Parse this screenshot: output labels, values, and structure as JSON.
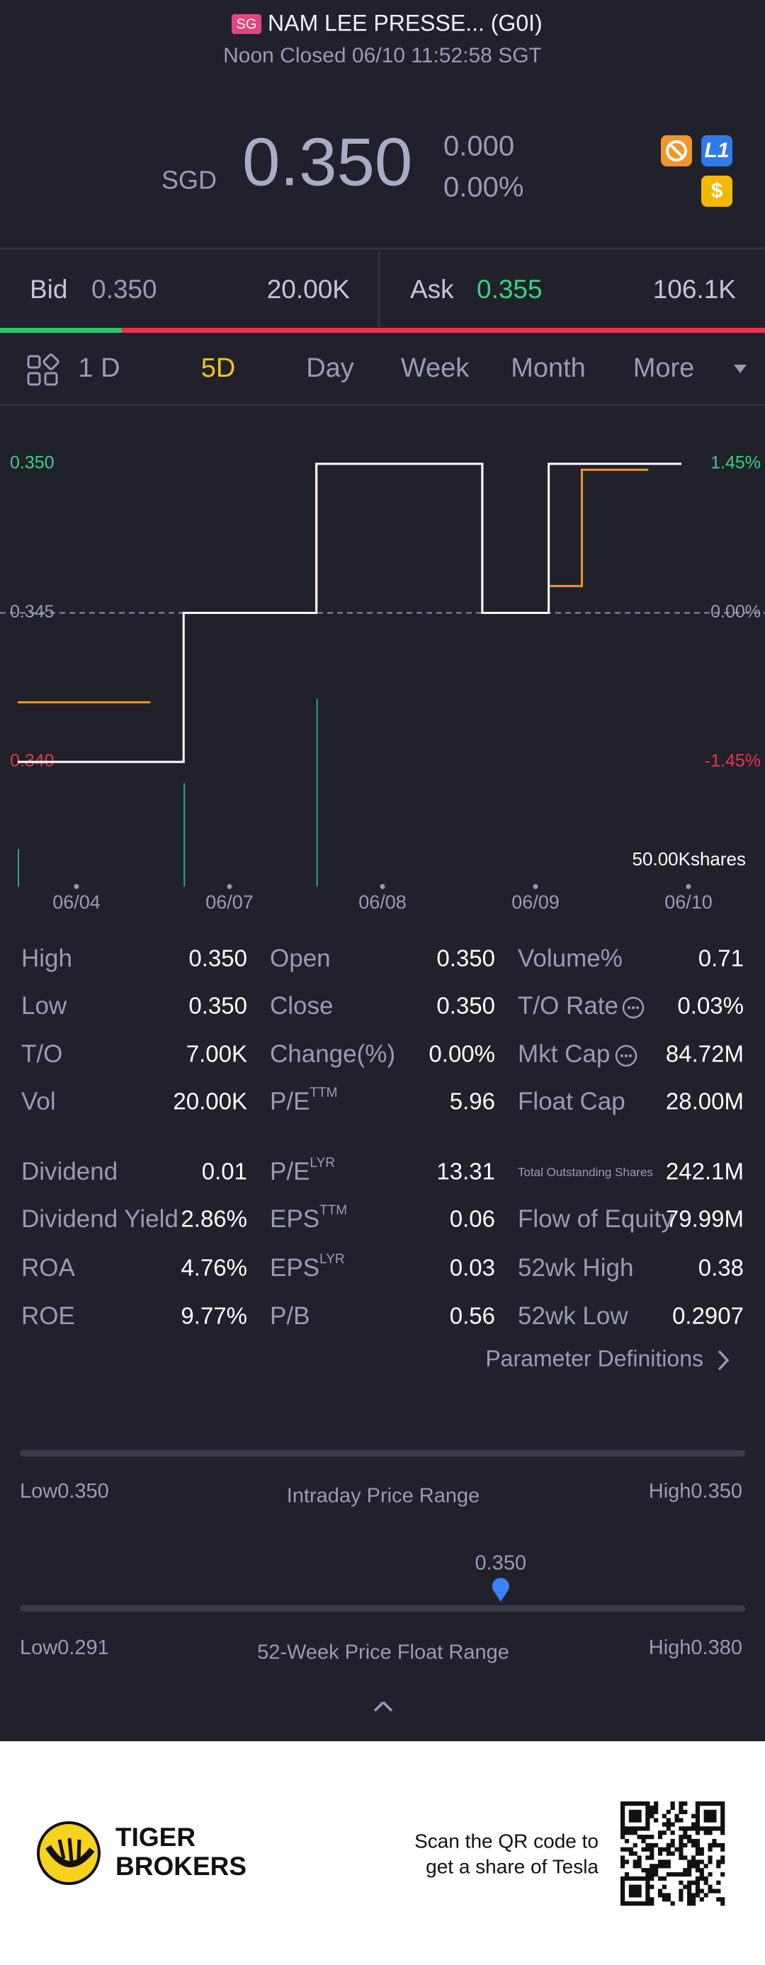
{
  "header": {
    "badge": "SG",
    "title": "NAM LEE PRESSE... (G0I)",
    "status": "Noon Closed 06/10 11:52:58 SGT"
  },
  "quote": {
    "currency": "SGD",
    "price": "0.350",
    "change": "0.000",
    "change_pct": "0.00%"
  },
  "order_book": {
    "bid_label": "Bid",
    "bid": "0.350",
    "bid_size": "20.00K",
    "ask_label": "Ask",
    "ask": "0.355",
    "ask_size": "106.1K"
  },
  "tabs": [
    "1 D",
    "5D",
    "Day",
    "Week",
    "Month",
    "More"
  ],
  "active_tab": 1,
  "chart": {
    "type": "line",
    "ylim": [
      0.34,
      0.35
    ],
    "yticks": [
      {
        "value": 0.35,
        "label": "0.350"
      },
      {
        "value": 0.345,
        "label": "0.345"
      },
      {
        "value": 0.34,
        "label": "0.340"
      }
    ],
    "y2lim": [
      -1.45,
      1.45
    ],
    "y2ticks": [
      {
        "value": 1.45,
        "label": "1.45%"
      },
      {
        "value": 0,
        "label": "0.00%"
      },
      {
        "value": -1.45,
        "label": "-1.45%"
      }
    ],
    "series": [
      {
        "color": "#ffffff",
        "values": [
          0.34,
          0.34,
          0.34,
          0.34,
          0.34,
          0.345,
          0.345,
          0.345,
          0.345,
          0.35,
          0.35,
          0.35,
          0.35,
          0.35,
          0.345,
          0.345,
          0.35,
          0.35,
          0.35,
          0.35
        ]
      },
      {
        "color": "#f0962a",
        "values": [
          0.342,
          0.342,
          0.342,
          0.342,
          null,
          0.345,
          0.345,
          0.345,
          0.345,
          0.35,
          0.35,
          0.35,
          0.35,
          0.35,
          0.345,
          0.345,
          0.3459,
          0.3498,
          0.3498,
          null
        ]
      }
    ],
    "volume": {
      "color": "#2eaa6a",
      "ylim": [
        0,
        20000
      ],
      "label": "50.00Kshares",
      "values": [
        4000,
        null,
        null,
        null,
        null,
        11000,
        null,
        null,
        null,
        20000,
        null,
        null,
        null,
        null,
        null,
        null,
        null,
        null,
        null,
        null
      ]
    },
    "dates": [
      "06/04",
      "06/07",
      "06/08",
      "06/09",
      "06/10"
    ]
  },
  "stats": [
    {
      "label": "High",
      "value": "0.350"
    },
    {
      "label": "Open",
      "value": "0.350"
    },
    {
      "label": "Volume%",
      "value": "0.71"
    },
    {
      "label": "Low",
      "value": "0.350"
    },
    {
      "label": "Close",
      "value": "0.350"
    },
    {
      "label": "T/O Rate",
      "value": "0.03%"
    },
    {
      "label": "T/O",
      "value": "7.00K"
    },
    {
      "label": "Change(%)",
      "value": "0.00%"
    },
    {
      "label": "Mkt Cap",
      "value": "84.72M"
    },
    {
      "label": "Vol",
      "value": "20.00K"
    },
    {
      "label": "P/E",
      "sup": "TTM",
      "value": "5.96"
    },
    {
      "label": "Float Cap",
      "value": "28.00M"
    },
    {
      "label": "Dividend",
      "value": "0.01"
    },
    {
      "label": "P/E",
      "sup": "LYR",
      "value": "13.31"
    },
    {
      "label": "Total Outstanding Shares",
      "value": "242.1M"
    },
    {
      "label": "Dividend Yield",
      "value": "2.86%"
    },
    {
      "label": "EPS",
      "sup": "TTM",
      "value": "0.06"
    },
    {
      "label": "Flow of Equity",
      "value": "79.99M"
    },
    {
      "label": "ROA",
      "value": "4.76%"
    },
    {
      "label": "EPS",
      "sup": "LYR",
      "value": "0.03"
    },
    {
      "label": "52wk High",
      "value": "0.38"
    },
    {
      "label": "ROE",
      "value": "9.77%"
    },
    {
      "label": "P/B",
      "value": "0.56"
    },
    {
      "label": "52wk Low",
      "value": "0.2907"
    }
  ],
  "param_link": "Parameter Definitions",
  "intraday": {
    "low_label": "Low",
    "low": "0.350",
    "title": "Intraday Price Range",
    "high_label": "High",
    "high": "0.350"
  },
  "week52": {
    "low_label": "Low",
    "low": "0.291",
    "title": "52-Week Price Float Range",
    "high_label": "High",
    "high": "0.380",
    "current": "0.350"
  },
  "footer": {
    "brand": [
      "TIGER",
      "BROKERS"
    ],
    "promo": [
      "Scan the QR code to",
      "get a share of Tesla"
    ]
  }
}
